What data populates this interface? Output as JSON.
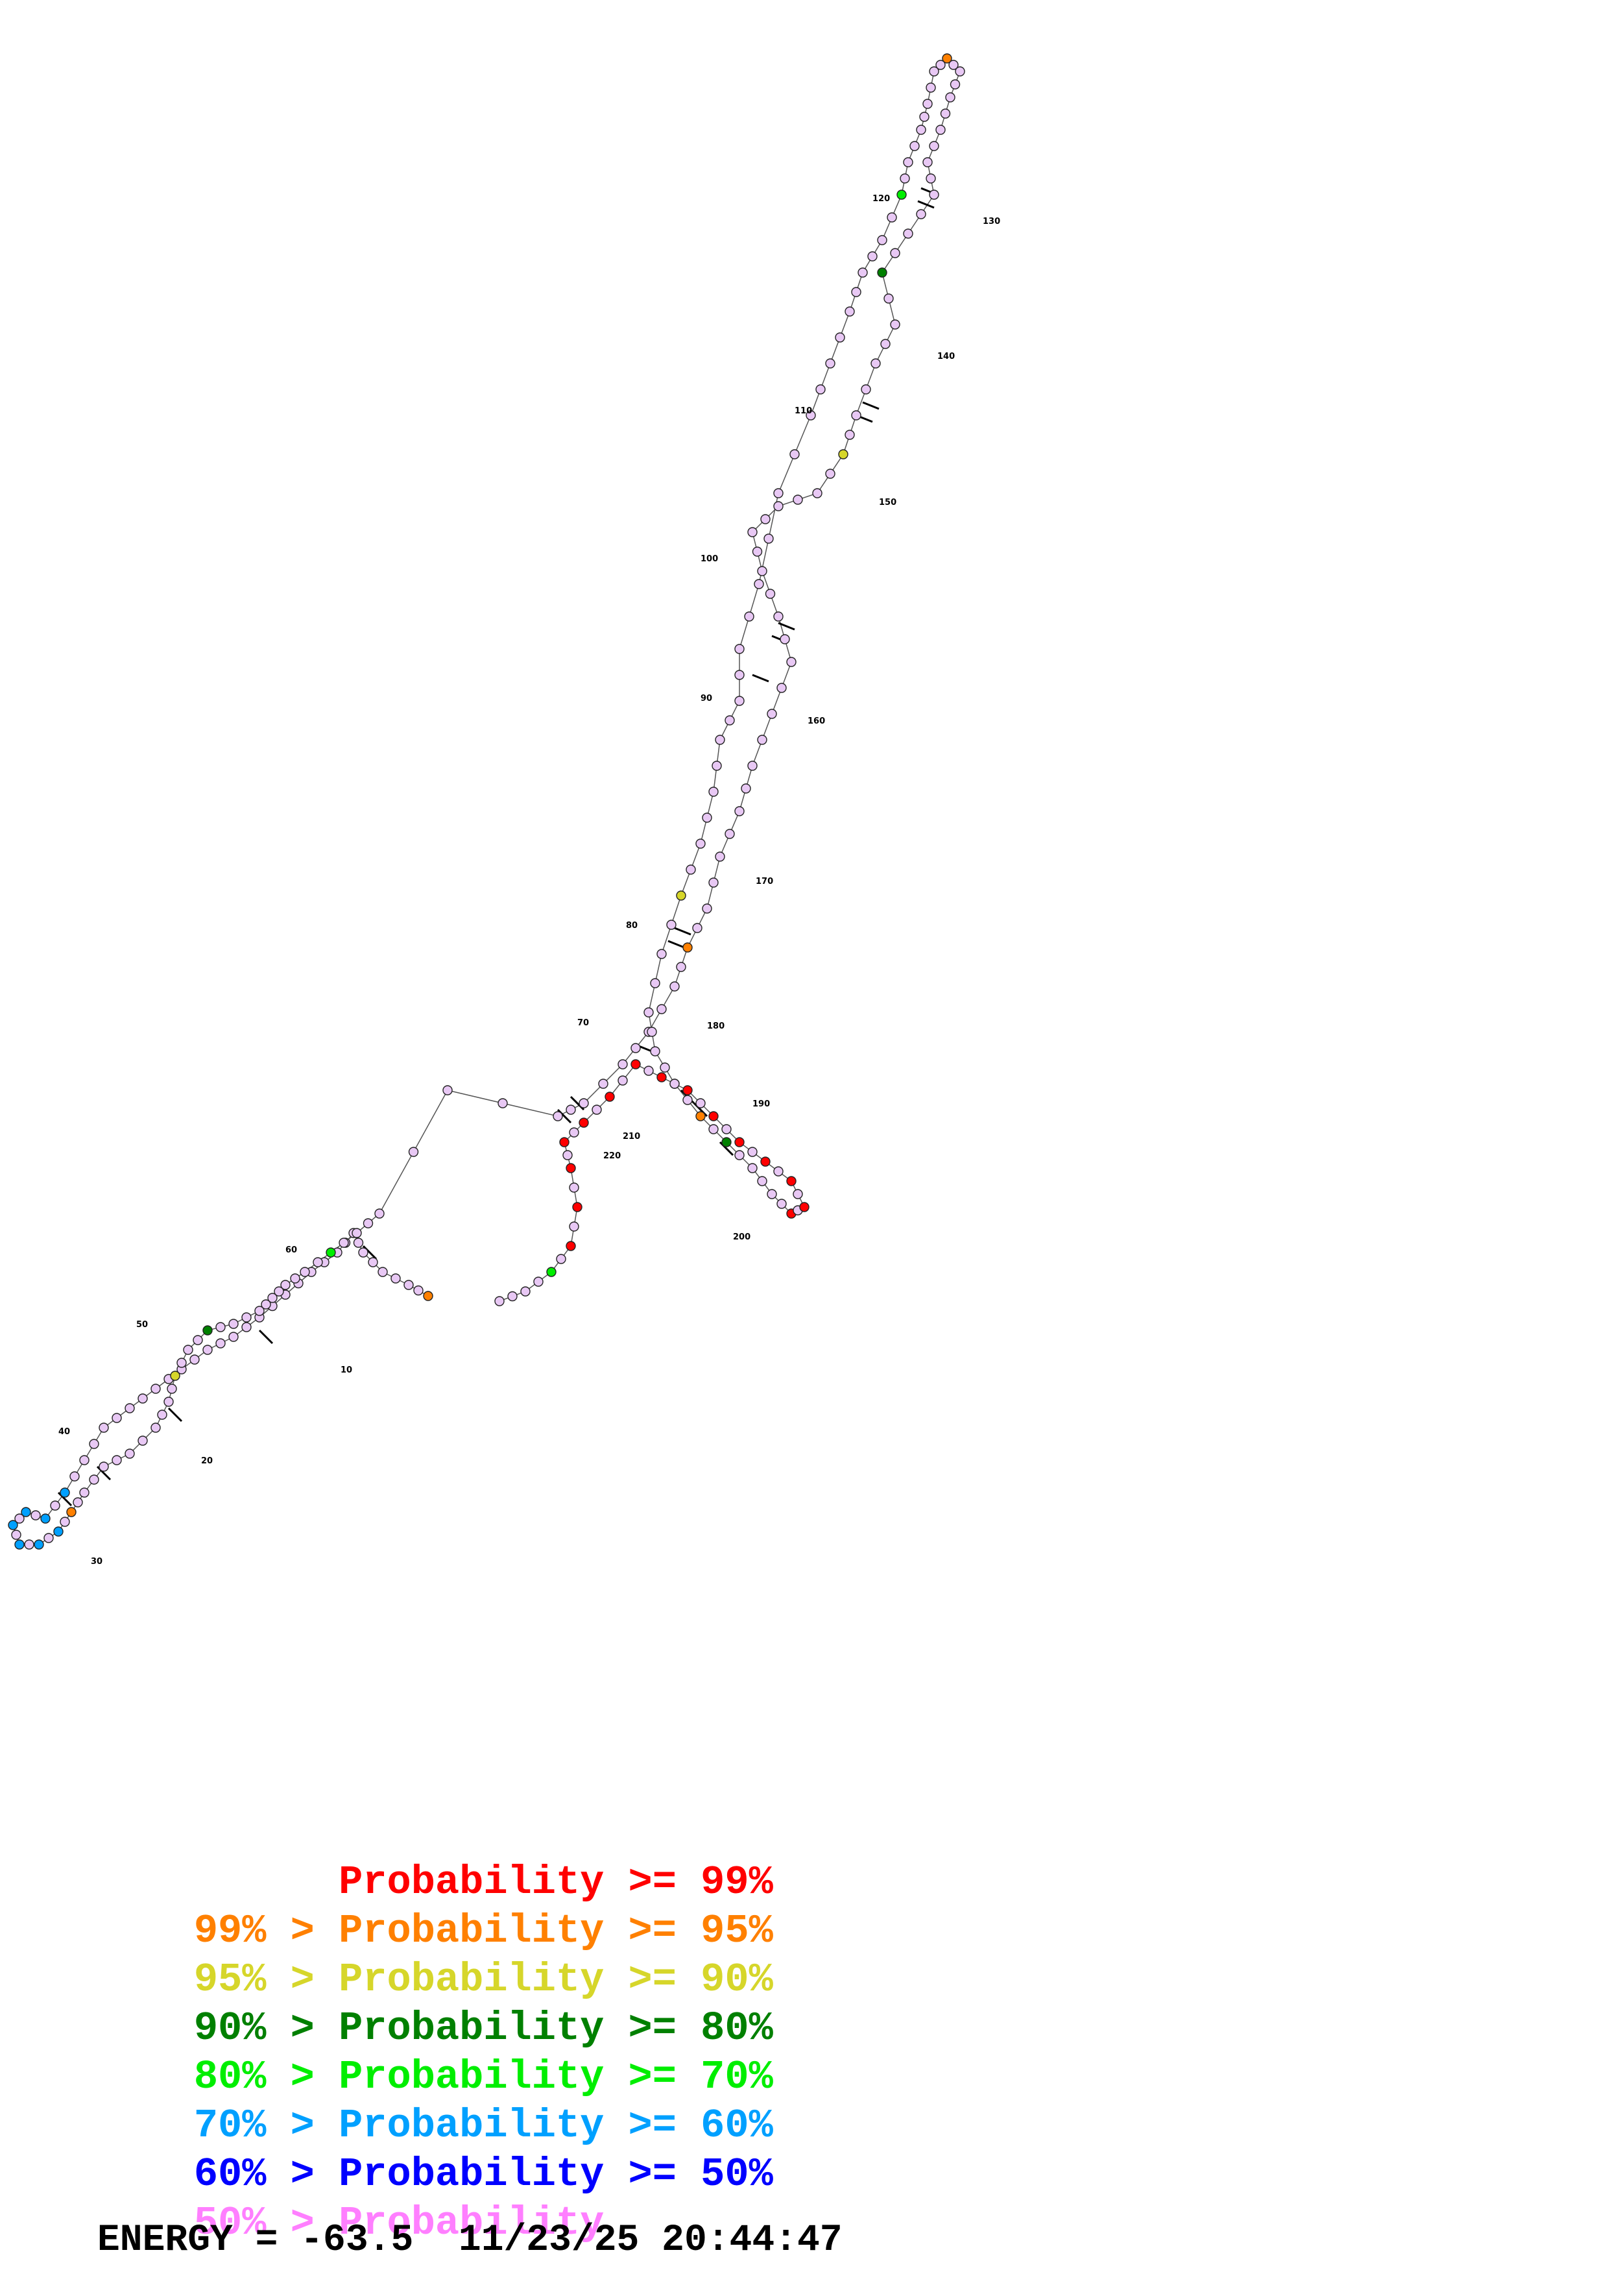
{
  "legend": {
    "rows": [
      {
        "prefix": "",
        "label": "Probability >= 99%",
        "color": "#ff0000"
      },
      {
        "prefix": "99% > ",
        "label": "Probability >= 95%",
        "color": "#ff8000"
      },
      {
        "prefix": "95% > ",
        "label": "Probability >= 90%",
        "color": "#d6d62a"
      },
      {
        "prefix": "90% > ",
        "label": "Probability >= 80%",
        "color": "#008000"
      },
      {
        "prefix": "80% > ",
        "label": "Probability >= 70%",
        "color": "#00ee00"
      },
      {
        "prefix": "70% > ",
        "label": "Probability >= 60%",
        "color": "#00a0ff"
      },
      {
        "prefix": "60% > ",
        "label": "Probability >= 50%",
        "color": "#0000ff"
      },
      {
        "prefix": "50% > ",
        "label": "Probability",
        "color": "#ff7fff"
      }
    ]
  },
  "energy": {
    "text": "ENERGY = -63.5  11/23/25 20:44:47"
  },
  "structure": {
    "position_labels": [
      "10",
      "20",
      "30",
      "40",
      "50",
      "60",
      "70",
      "80",
      "90",
      "100",
      "110",
      "120",
      "130",
      "140",
      "150",
      "160",
      "170",
      "180",
      "190",
      "200",
      "210",
      "220"
    ],
    "base_color": "#e8c8f4",
    "base_stroke": "#222222",
    "backbone_color": "#555555"
  }
}
